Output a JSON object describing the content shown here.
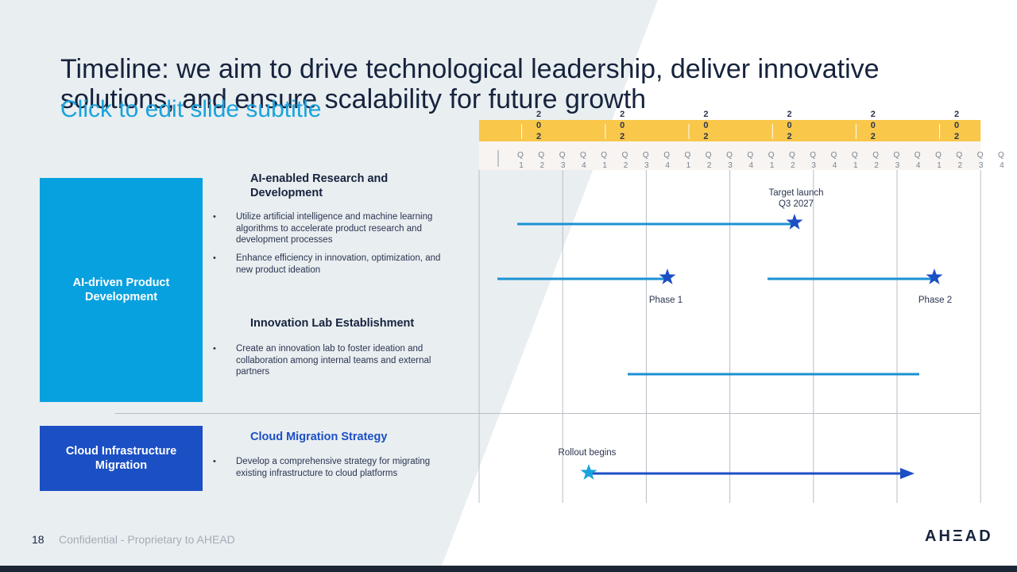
{
  "slide": {
    "title": "Timeline: we aim to drive technological leadership, deliver innovative solutions, and ensure scalability for future growth",
    "subtitle": "Click to edit slide subtitle"
  },
  "timeline": {
    "year_label": "202",
    "years": 6,
    "quarters": [
      "Q1",
      "Q2",
      "Q3",
      "Q4"
    ],
    "colors": {
      "year_band": "#f9c74a",
      "quarter_band": "#f7f4f1",
      "bar_light": "#1c91d3",
      "bar_dark": "#1b4fc4",
      "star": "#1b4fc4",
      "star_light": "#1aa3dc"
    }
  },
  "categories": [
    {
      "label": "AI-driven Product Development",
      "color": "#08a1df"
    },
    {
      "label": "Cloud Infrastructure Migration",
      "color": "#1b4fc4"
    }
  ],
  "projects": [
    {
      "title": "AI-enabled Research and Development",
      "bullets": [
        "Utilize artificial intelligence and machine learning algorithms to accelerate product research and development processes",
        "Enhance efficiency in innovation, optimization, and new product ideation"
      ]
    },
    {
      "title": "Innovation Lab Establishment",
      "bullets": [
        "Create an innovation lab to foster ideation and collaboration among internal teams and external partners"
      ]
    },
    {
      "title": "Cloud Migration Strategy",
      "bullets": [
        "Develop a comprehensive strategy for migrating existing infrastructure to cloud platforms"
      ]
    }
  ],
  "annotations": {
    "target_launch_line1": "Target launch",
    "target_launch_line2": "Q3 2027",
    "phase1": "Phase 1",
    "phase2": "Phase 2",
    "rollout": "Rollout begins"
  },
  "footer": {
    "page_number": "18",
    "confidential": "Confidential - Proprietary to AHEAD",
    "logo": "AHΞAD"
  }
}
